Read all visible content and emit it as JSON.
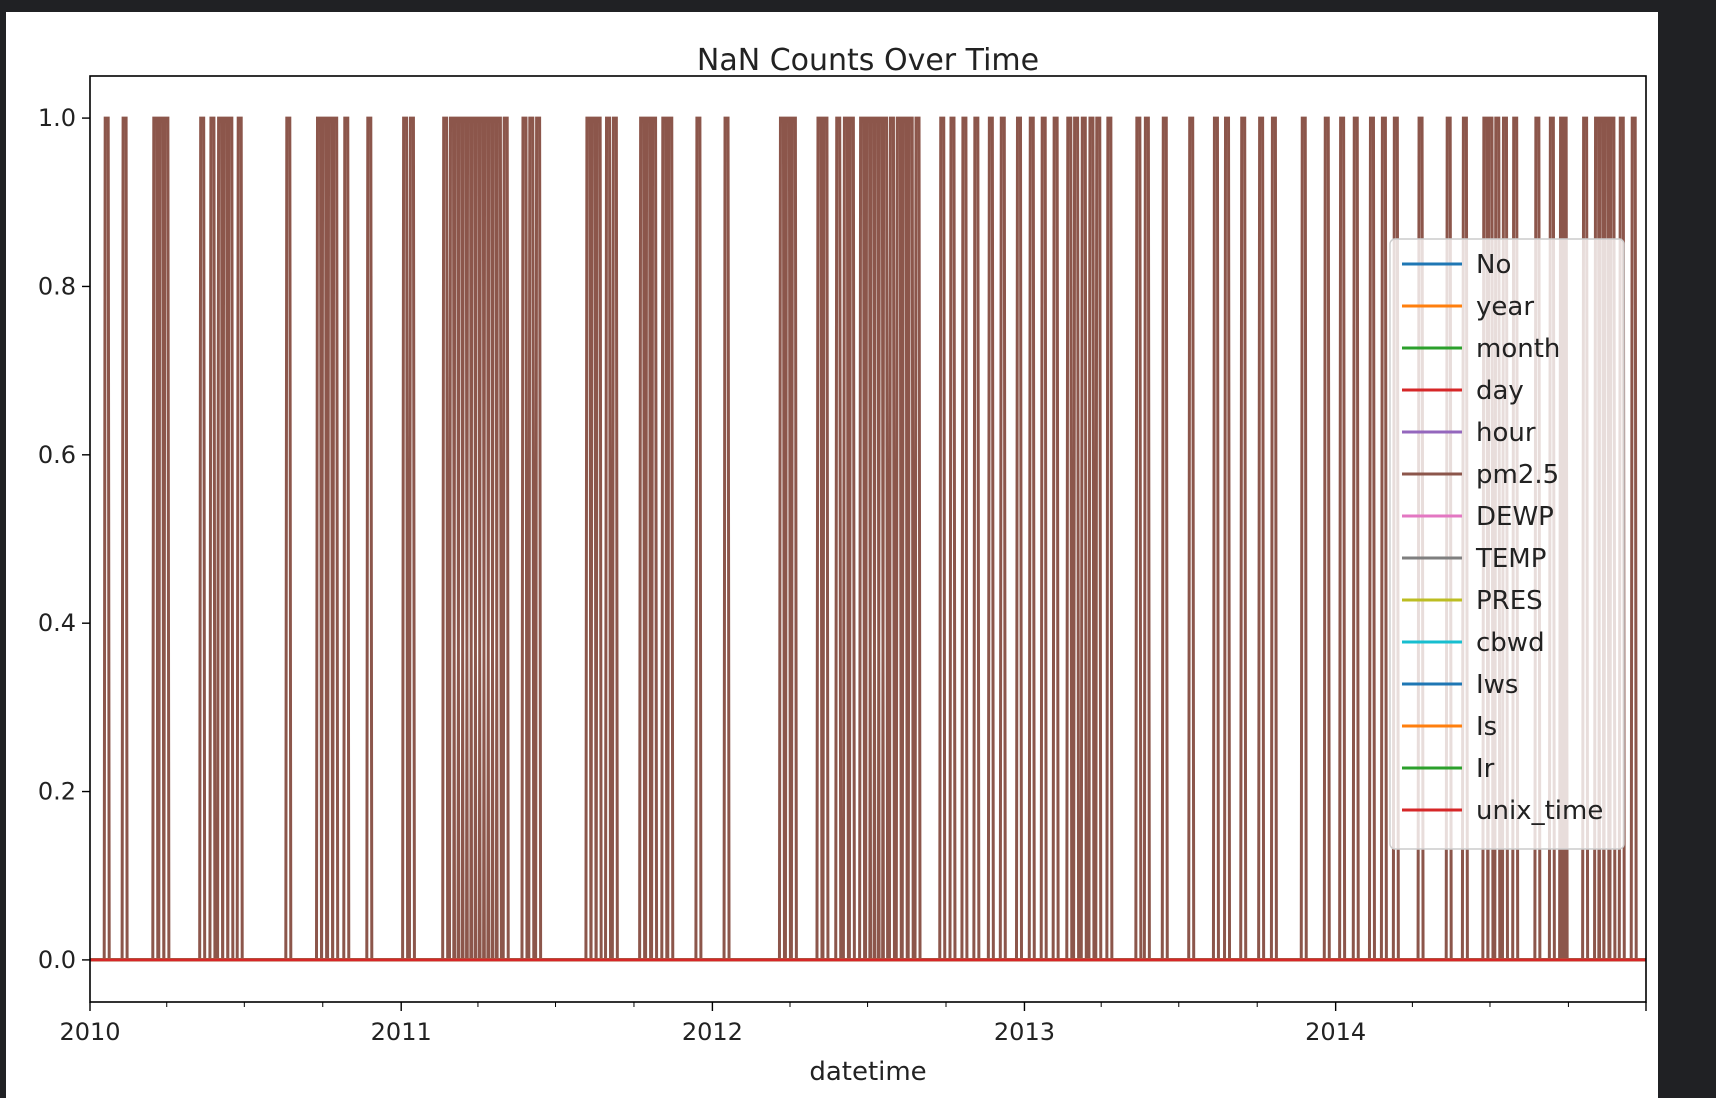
{
  "chart_data": {
    "type": "line",
    "title": "NaN Counts Over Time",
    "xlabel": "datetime",
    "ylabel": "",
    "x_range": [
      "2010-01-01",
      "2014-12-31"
    ],
    "ylim": [
      -0.05,
      1.05
    ],
    "y_ticks": [
      0.0,
      0.2,
      0.4,
      0.6,
      0.8,
      1.0
    ],
    "y_tick_labels": [
      "0.0",
      "0.2",
      "0.4",
      "0.6",
      "0.8",
      "1.0"
    ],
    "x_ticks": [
      "2010-01-01",
      "2011-01-01",
      "2012-01-01",
      "2013-01-01",
      "2014-01-01"
    ],
    "x_tick_labels": [
      "2010",
      "2011",
      "2012",
      "2013",
      "2014"
    ],
    "grid": false,
    "legend_position": "center-right",
    "series": [
      {
        "name": "No",
        "color": "#1f77b4",
        "values": "constant 0"
      },
      {
        "name": "year",
        "color": "#ff7f0e",
        "values": "constant 0"
      },
      {
        "name": "month",
        "color": "#2ca02c",
        "values": "constant 0"
      },
      {
        "name": "day",
        "color": "#d62728",
        "values": "constant 0"
      },
      {
        "name": "hour",
        "color": "#9467bd",
        "values": "constant 0"
      },
      {
        "name": "pm2.5",
        "color": "#8c564b",
        "spikes_value": 1.0,
        "spike_dates": [
          "2010-01-20",
          "2010-02-10",
          "2010-03-18",
          "2010-03-25",
          "2010-03-31",
          "2010-05-12",
          "2010-05-24",
          "2010-06-02",
          "2010-06-08",
          "2010-06-14",
          "2010-06-25",
          "2010-08-21",
          "2010-09-26",
          "2010-10-02",
          "2010-10-09",
          "2010-10-15",
          "2010-10-28",
          "2010-11-24",
          "2011-01-05",
          "2011-01-13",
          "2011-02-21",
          "2011-03-01",
          "2011-03-06",
          "2011-03-11",
          "2011-03-16",
          "2011-03-21",
          "2011-03-26",
          "2011-03-31",
          "2011-04-05",
          "2011-04-10",
          "2011-04-15",
          "2011-04-20",
          "2011-04-25",
          "2011-05-03",
          "2011-05-25",
          "2011-06-02",
          "2011-06-10",
          "2011-08-08",
          "2011-08-14",
          "2011-08-20",
          "2011-08-31",
          "2011-09-08",
          "2011-10-10",
          "2011-10-17",
          "2011-10-24",
          "2011-11-05",
          "2011-11-12",
          "2011-12-15",
          "2012-01-17",
          "2012-03-22",
          "2012-03-29",
          "2012-04-05",
          "2012-05-05",
          "2012-05-12",
          "2012-05-27",
          "2012-06-05",
          "2012-06-12",
          "2012-06-24",
          "2012-07-01",
          "2012-07-06",
          "2012-07-11",
          "2012-07-16",
          "2012-07-21",
          "2012-07-29",
          "2012-08-06",
          "2012-08-13",
          "2012-08-20",
          "2012-08-28",
          "2012-09-26",
          "2012-10-08",
          "2012-10-22",
          "2012-11-05",
          "2012-11-22",
          "2012-12-06",
          "2012-12-25",
          "2013-01-09",
          "2013-01-23",
          "2013-02-06",
          "2013-02-22",
          "2013-03-02",
          "2013-03-11",
          "2013-03-20",
          "2013-03-28",
          "2013-04-10",
          "2013-05-14",
          "2013-05-24",
          "2013-06-14",
          "2013-07-15",
          "2013-08-13",
          "2013-08-26",
          "2013-09-14",
          "2013-10-05",
          "2013-10-20",
          "2013-11-24",
          "2013-12-21",
          "2014-01-08",
          "2014-01-24",
          "2014-02-12",
          "2014-02-26",
          "2014-03-12",
          "2014-04-10",
          "2014-05-13",
          "2014-06-01",
          "2014-06-25",
          "2014-07-01",
          "2014-07-09",
          "2014-07-18",
          "2014-07-30",
          "2014-08-25",
          "2014-09-11",
          "2014-09-23",
          "2014-09-26",
          "2014-10-20",
          "2014-11-03",
          "2014-11-08",
          "2014-11-14",
          "2014-11-21",
          "2014-12-02",
          "2014-12-16"
        ],
        "baseline_value": 0.0
      },
      {
        "name": "DEWP",
        "color": "#e377c2",
        "values": "constant 0"
      },
      {
        "name": "TEMP",
        "color": "#7f7f7f",
        "values": "constant 0"
      },
      {
        "name": "PRES",
        "color": "#bcbd22",
        "values": "constant 0"
      },
      {
        "name": "cbwd",
        "color": "#17becf",
        "values": "constant 0"
      },
      {
        "name": "Iws",
        "color": "#1f77b4",
        "values": "constant 0"
      },
      {
        "name": "Is",
        "color": "#ff7f0e",
        "values": "constant 0"
      },
      {
        "name": "Ir",
        "color": "#2ca02c",
        "values": "constant 0"
      },
      {
        "name": "unix_time",
        "color": "#d62728",
        "values": "constant 0"
      }
    ]
  }
}
